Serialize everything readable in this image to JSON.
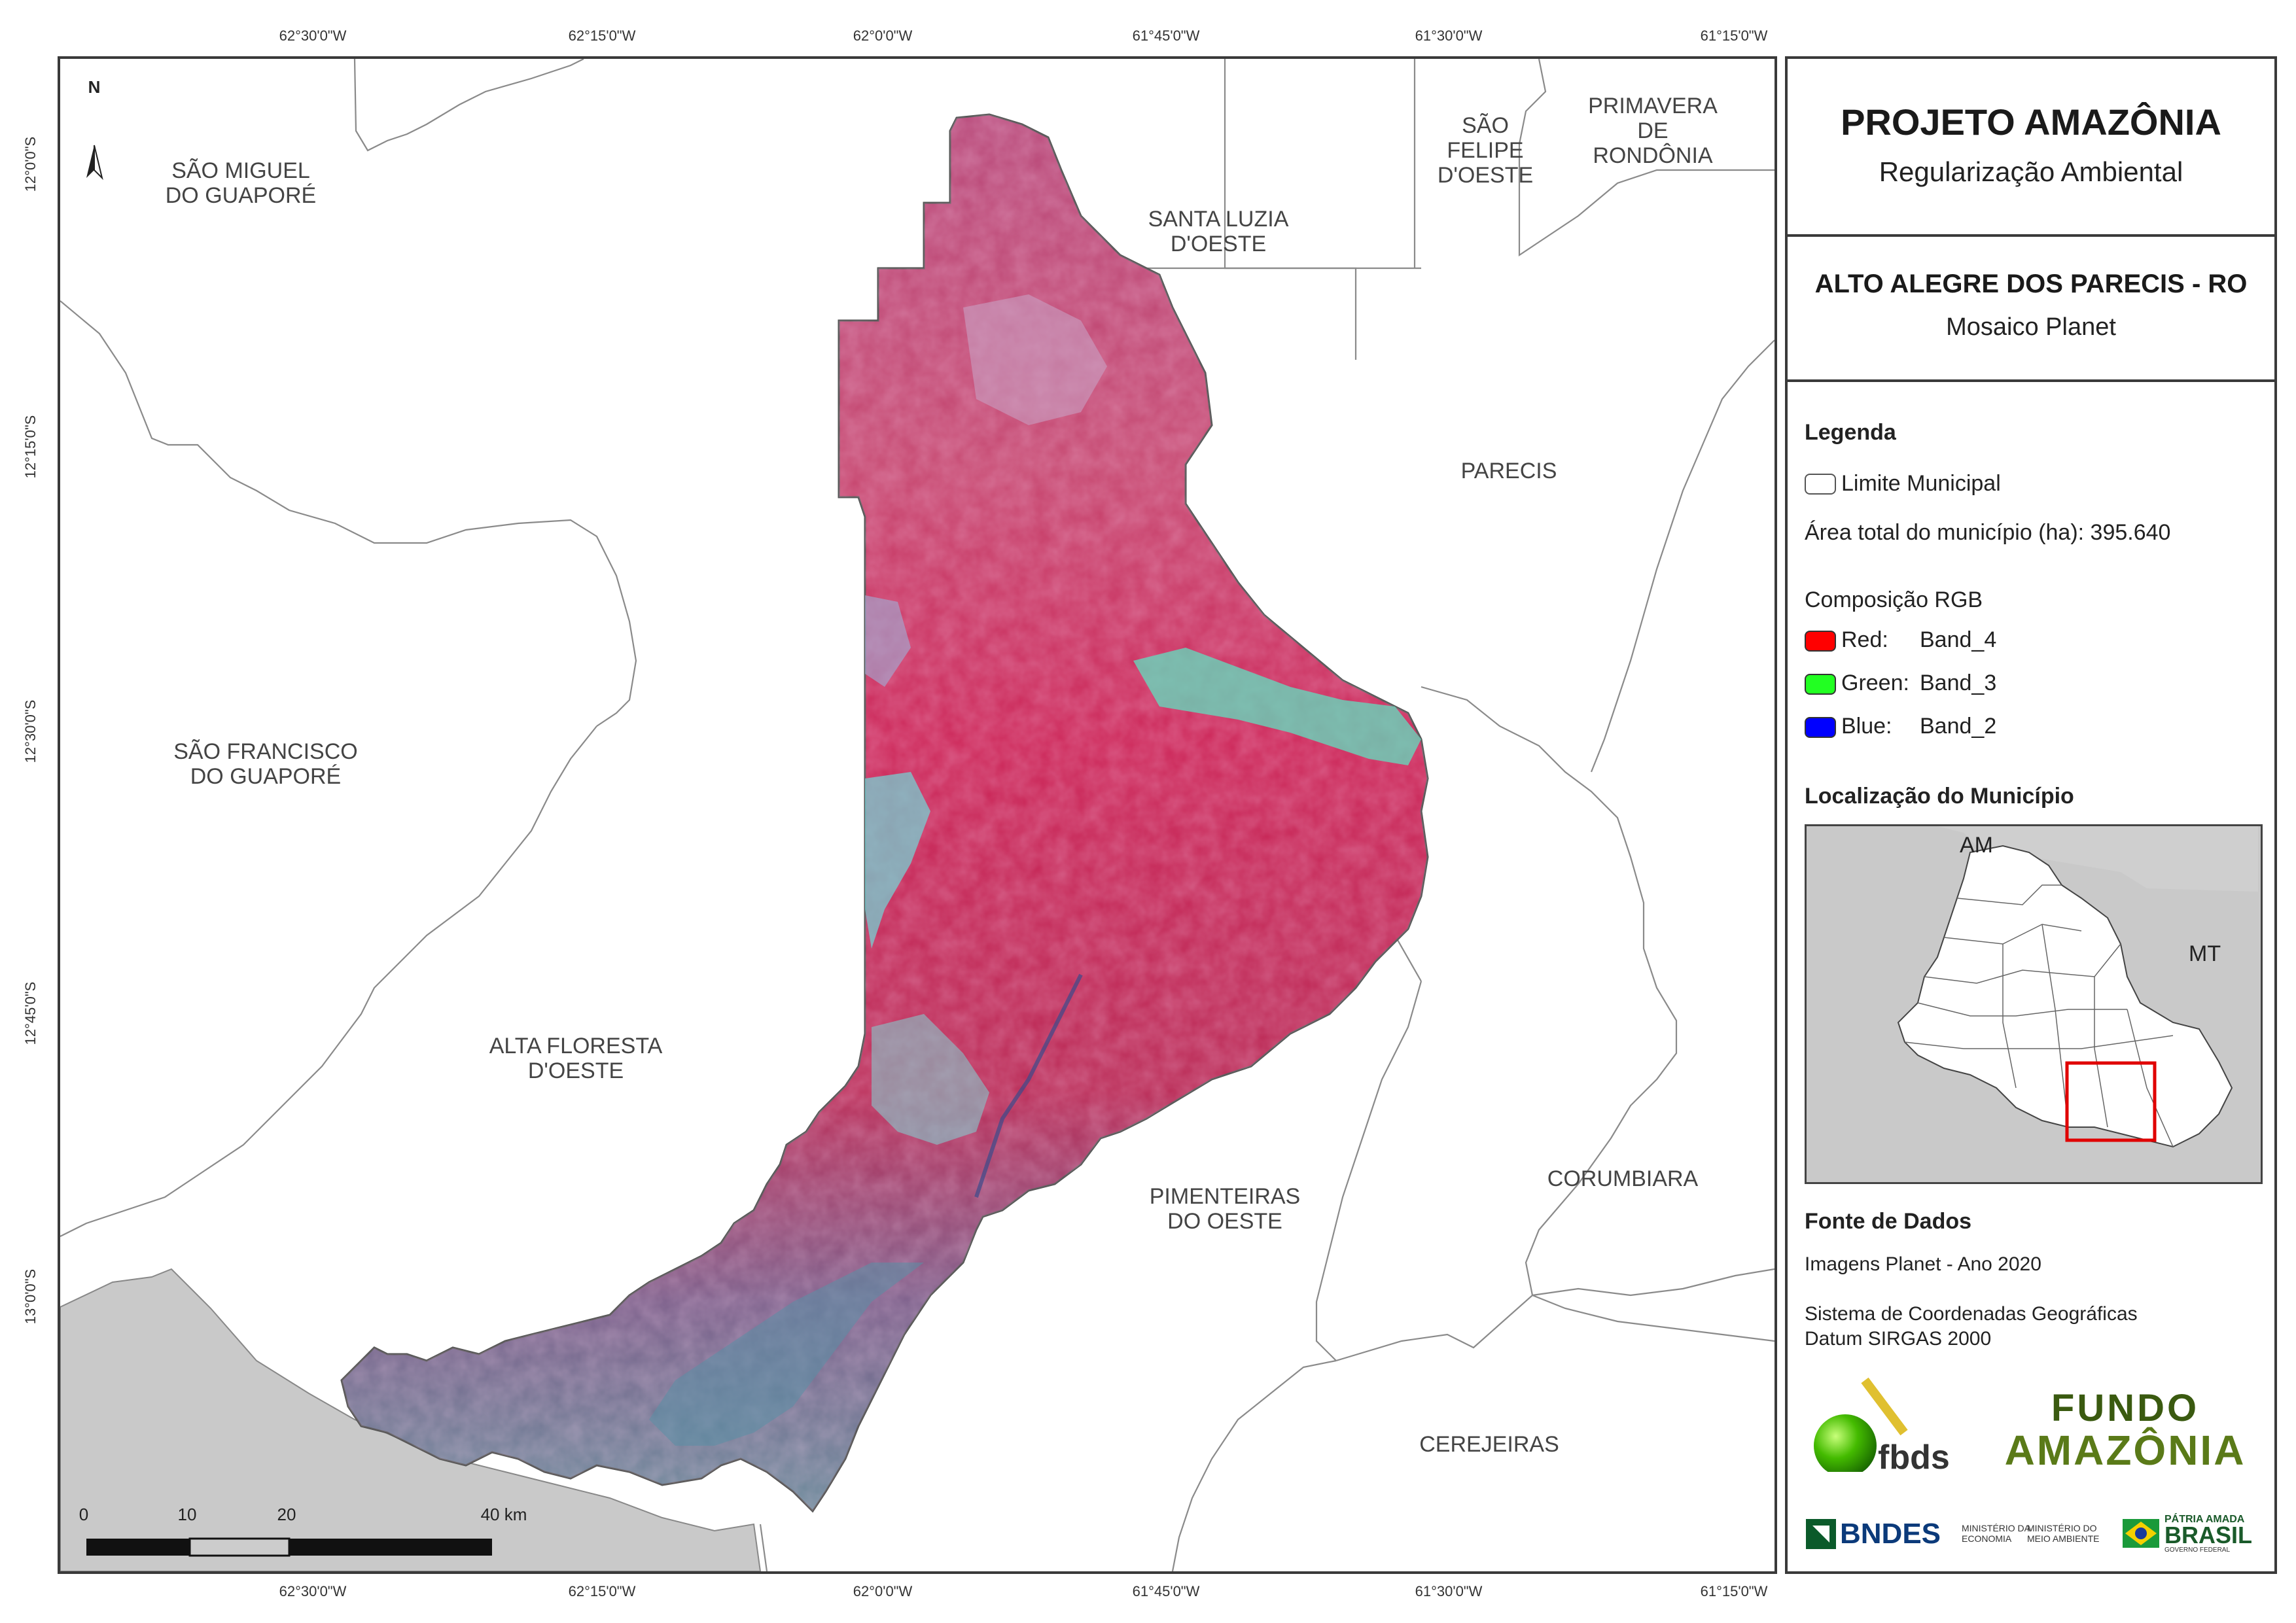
{
  "coords": {
    "top_lon": [
      "62°30'0\"W",
      "62°15'0\"W",
      "62°0'0\"W",
      "61°45'0\"W",
      "61°30'0\"W",
      "61°15'0\"W"
    ],
    "bottom_lon": [
      "62°30'0\"W",
      "62°15'0\"W",
      "62°0'0\"W",
      "61°45'0\"W",
      "61°30'0\"W",
      "61°15'0\"W"
    ],
    "left_lat": [
      "12°0'0\"S",
      "12°15'0\"S",
      "12°30'0\"S",
      "12°45'0\"S",
      "13°0'0\"S"
    ]
  },
  "map": {
    "north_label": "N",
    "municipalities": [
      {
        "name": "SÃO MIGUEL\nDO GUAPORÉ"
      },
      {
        "name": "SANTA LUZIA\nD'OESTE"
      },
      {
        "name": "SÃO\nFELIPE\nD'OESTE"
      },
      {
        "name": "PRIMAVERA\nDE RONDÔNIA"
      },
      {
        "name": "PARECIS"
      },
      {
        "name": "SÃO FRANCISCO\nDO GUAPORÉ"
      },
      {
        "name": "ALTA FLORESTA\nD'OESTE"
      },
      {
        "name": "PIMENTEIRAS\nDO OESTE"
      },
      {
        "name": "CORUMBIARA"
      },
      {
        "name": "CEREJEIRAS"
      }
    ],
    "scale_labels": [
      "0",
      "10",
      "20",
      "40 km"
    ]
  },
  "panel": {
    "title": "PROJETO AMAZÔNIA",
    "subtitle": "Regularização Ambiental",
    "municipality": "ALTO ALEGRE DOS PARECIS - RO",
    "product": "Mosaico Planet",
    "legend_title": "Legenda",
    "limit_label": "Limite Municipal",
    "area_label": "Área total do município (ha): 395.640",
    "rgb_title": "Composição RGB",
    "rgb": [
      {
        "channel": "Red:",
        "band": "Band_4",
        "color": "#ff0000"
      },
      {
        "channel": "Green:",
        "band": "Band_3",
        "color": "#22ff22"
      },
      {
        "channel": "Blue:",
        "band": "Band_2",
        "color": "#0000ff"
      }
    ],
    "location_title": "Localização do Município",
    "inset_labels": {
      "am": "AM",
      "mt": "MT"
    },
    "sources_title": "Fonte de Dados",
    "source_1": "Imagens Planet - Ano 2020",
    "source_2": "Sistema de Coordenadas Geográficas",
    "source_3": "Datum SIRGAS 2000",
    "logos": {
      "fbds": "fbds",
      "fundo_1": "FUNDO",
      "fundo_2": "AMAZÔNIA",
      "bndes": "BNDES",
      "min_eco": "MINISTÉRIO DA\nECONOMIA",
      "min_amb": "MINISTÉRIO DO\nMEIO AMBIENTE",
      "patria": "PÁTRIA AMADA",
      "brasil": "BRASIL",
      "gov": "GOVERNO FEDERAL"
    }
  }
}
